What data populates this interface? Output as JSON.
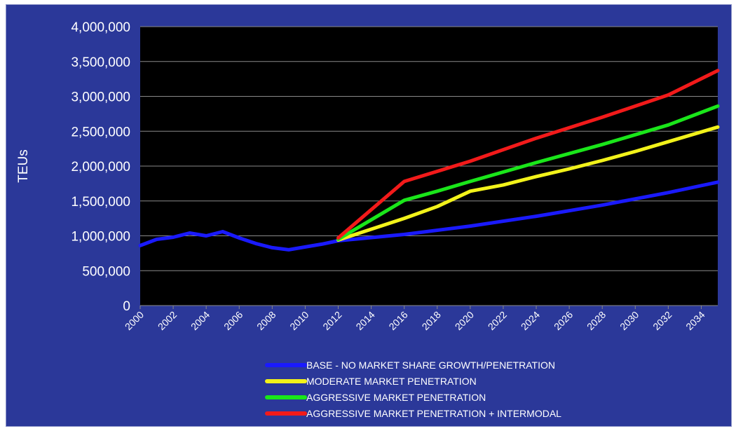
{
  "chart_data": {
    "type": "line",
    "title": "",
    "xlabel": "",
    "ylabel": "TEUs",
    "ylim": [
      0,
      4000000
    ],
    "xlim": [
      2000,
      2035
    ],
    "grid": true,
    "legend_position": "bottom",
    "background": "#000000",
    "y_ticks": [
      {
        "value": 0,
        "label": "0"
      },
      {
        "value": 500000,
        "label": "500,000"
      },
      {
        "value": 1000000,
        "label": "1,000,000"
      },
      {
        "value": 1500000,
        "label": "1,500,000"
      },
      {
        "value": 2000000,
        "label": "2,000,000"
      },
      {
        "value": 2500000,
        "label": "2,500,000"
      },
      {
        "value": 3000000,
        "label": "3,000,000"
      },
      {
        "value": 3500000,
        "label": "3,500,000"
      },
      {
        "value": 4000000,
        "label": "4,000,000"
      }
    ],
    "x_ticks": [
      {
        "value": 2000,
        "label": "2000"
      },
      {
        "value": 2002,
        "label": "2002"
      },
      {
        "value": 2004,
        "label": "2004"
      },
      {
        "value": 2006,
        "label": "2006"
      },
      {
        "value": 2008,
        "label": "2008"
      },
      {
        "value": 2010,
        "label": "2010"
      },
      {
        "value": 2012,
        "label": "2012"
      },
      {
        "value": 2014,
        "label": "2014"
      },
      {
        "value": 2016,
        "label": "2016"
      },
      {
        "value": 2018,
        "label": "2018"
      },
      {
        "value": 2020,
        "label": "2020"
      },
      {
        "value": 2022,
        "label": "2022"
      },
      {
        "value": 2024,
        "label": "2024"
      },
      {
        "value": 2026,
        "label": "2026"
      },
      {
        "value": 2028,
        "label": "2028"
      },
      {
        "value": 2030,
        "label": "2030"
      },
      {
        "value": 2032,
        "label": "2032"
      },
      {
        "value": 2034,
        "label": "2034"
      }
    ],
    "series": [
      {
        "name": "BASE - NO MARKET SHARE GROWTH/PENETRATION",
        "color": "#1a1aff",
        "points": [
          [
            2000,
            860000
          ],
          [
            2001,
            950000
          ],
          [
            2002,
            980000
          ],
          [
            2003,
            1040000
          ],
          [
            2004,
            1000000
          ],
          [
            2005,
            1060000
          ],
          [
            2006,
            970000
          ],
          [
            2007,
            890000
          ],
          [
            2008,
            830000
          ],
          [
            2009,
            800000
          ],
          [
            2010,
            840000
          ],
          [
            2011,
            880000
          ],
          [
            2012,
            930000
          ],
          [
            2016,
            1020000
          ],
          [
            2020,
            1140000
          ],
          [
            2024,
            1280000
          ],
          [
            2028,
            1440000
          ],
          [
            2032,
            1620000
          ],
          [
            2035,
            1770000
          ]
        ]
      },
      {
        "name": "MODERATE MARKET PENETRATION",
        "color": "#f2f21a",
        "points": [
          [
            2012,
            940000
          ],
          [
            2016,
            1250000
          ],
          [
            2018,
            1420000
          ],
          [
            2020,
            1640000
          ],
          [
            2022,
            1730000
          ],
          [
            2024,
            1850000
          ],
          [
            2026,
            1960000
          ],
          [
            2028,
            2080000
          ],
          [
            2030,
            2210000
          ],
          [
            2032,
            2350000
          ],
          [
            2035,
            2560000
          ]
        ]
      },
      {
        "name": "AGGRESSIVE MARKET PENETRATION",
        "color": "#1ae61a",
        "points": [
          [
            2012,
            950000
          ],
          [
            2016,
            1510000
          ],
          [
            2018,
            1640000
          ],
          [
            2020,
            1780000
          ],
          [
            2024,
            2050000
          ],
          [
            2028,
            2310000
          ],
          [
            2032,
            2590000
          ],
          [
            2035,
            2860000
          ]
        ]
      },
      {
        "name": "AGGRESSIVE MARKET PENETRATION + INTERMODAL",
        "color": "#f21a1a",
        "points": [
          [
            2012,
            970000
          ],
          [
            2016,
            1780000
          ],
          [
            2020,
            2070000
          ],
          [
            2024,
            2400000
          ],
          [
            2028,
            2700000
          ],
          [
            2032,
            3020000
          ],
          [
            2035,
            3370000
          ]
        ]
      }
    ]
  }
}
